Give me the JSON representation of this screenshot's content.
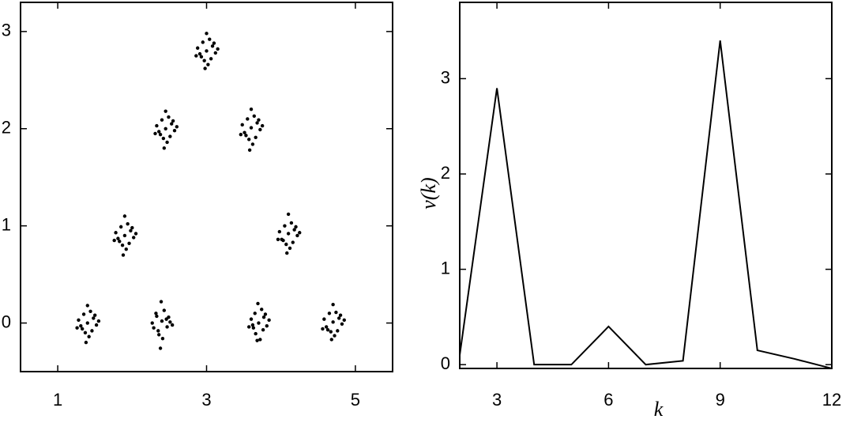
{
  "chart_data": [
    {
      "type": "scatter",
      "color": "#000000",
      "x": [
        1.4,
        1.48,
        1.33,
        1.52,
        1.28,
        1.44,
        1.37,
        1.5,
        1.31,
        1.42,
        1.35,
        1.46,
        1.26,
        1.55,
        1.4,
        1.38,
        2.4,
        2.47,
        2.33,
        2.51,
        2.29,
        2.43,
        2.36,
        2.49,
        2.32,
        2.41,
        2.35,
        2.46,
        2.27,
        2.54,
        2.39,
        2.38,
        3.7,
        3.77,
        3.63,
        3.81,
        3.6,
        3.74,
        3.66,
        3.79,
        3.62,
        3.72,
        3.65,
        3.76,
        3.57,
        3.84,
        3.69,
        3.68,
        4.7,
        4.78,
        4.63,
        4.82,
        4.58,
        4.74,
        4.67,
        4.8,
        4.61,
        4.72,
        4.65,
        4.76,
        4.56,
        4.85,
        4.7,
        4.68,
        1.9,
        1.98,
        1.83,
        2.02,
        1.78,
        1.94,
        1.87,
        2.0,
        1.81,
        1.92,
        1.85,
        1.96,
        1.76,
        2.05,
        1.9,
        1.88,
        4.1,
        4.18,
        4.03,
        4.22,
        3.98,
        4.14,
        4.07,
        4.2,
        4.01,
        4.12,
        4.05,
        4.16,
        3.96,
        4.25,
        4.1,
        4.08,
        2.45,
        2.53,
        2.38,
        2.57,
        2.33,
        2.49,
        2.42,
        2.55,
        2.36,
        2.47,
        2.4,
        2.51,
        2.31,
        2.6,
        2.45,
        2.43,
        3.6,
        3.68,
        3.53,
        3.72,
        3.48,
        3.64,
        3.57,
        3.7,
        3.51,
        3.62,
        3.55,
        3.66,
        3.46,
        3.75,
        3.6,
        3.58,
        3.0,
        3.08,
        2.93,
        3.12,
        2.88,
        3.04,
        2.97,
        3.1,
        2.91,
        3.02,
        2.95,
        3.06,
        2.86,
        3.15,
        3.0,
        2.98
      ],
      "y": [
        0,
        0.05,
        -0.06,
        -0.02,
        0.03,
        0.12,
        -0.1,
        0.08,
        -0.03,
        -0.14,
        0.09,
        -0.08,
        -0.05,
        0.02,
        0.18,
        -0.2,
        0.02,
        -0.04,
        0.07,
        0.01,
        -0.05,
        0.13,
        -0.12,
        0.06,
        0.1,
        -0.16,
        -0.08,
        0.04,
        0.0,
        -0.02,
        0.22,
        -0.26,
        0,
        0.06,
        -0.05,
        -0.03,
        0.04,
        0.14,
        -0.11,
        0.09,
        -0.02,
        -0.17,
        0.1,
        -0.07,
        -0.04,
        0.03,
        0.2,
        -0.18,
        0.01,
        0.05,
        -0.07,
        -0.01,
        0.04,
        0.11,
        -0.09,
        0.08,
        -0.04,
        -0.13,
        0.1,
        -0.08,
        -0.06,
        0.03,
        0.19,
        -0.17,
        0.9,
        0.95,
        0.84,
        0.88,
        0.93,
        1.02,
        0.8,
        0.98,
        0.87,
        0.76,
        0.99,
        0.82,
        0.85,
        0.92,
        1.1,
        0.7,
        0.92,
        0.96,
        0.85,
        0.9,
        0.94,
        1.03,
        0.81,
        0.99,
        0.86,
        0.77,
        1.0,
        0.83,
        0.86,
        0.93,
        1.12,
        0.72,
        2,
        2.05,
        1.94,
        1.98,
        2.03,
        2.12,
        1.9,
        2.08,
        1.97,
        1.86,
        2.09,
        1.92,
        1.95,
        2.02,
        2.18,
        1.8,
        2.01,
        2.06,
        1.93,
        1.99,
        2.04,
        2.13,
        1.89,
        2.09,
        1.96,
        1.84,
        2.1,
        1.91,
        1.94,
        2.03,
        2.2,
        1.78,
        2.8,
        2.85,
        2.74,
        2.78,
        2.83,
        2.92,
        2.7,
        2.88,
        2.77,
        2.66,
        2.89,
        2.72,
        2.75,
        2.82,
        2.98,
        2.62
      ],
      "xlim": [
        0.5,
        5.5
      ],
      "ylim": [
        -0.5,
        3.3
      ],
      "xticks": [
        1,
        3,
        5
      ],
      "yticks": [
        0,
        1,
        2,
        3
      ]
    },
    {
      "type": "line",
      "color": "#000000",
      "x_label": "k",
      "y_label": "v(k)",
      "x": [
        2,
        3,
        4,
        5,
        6,
        7,
        8,
        9,
        10,
        11,
        12
      ],
      "values": [
        0.1,
        2.9,
        0.0,
        0.0,
        0.4,
        0.0,
        0.04,
        3.4,
        0.15,
        0.06,
        -0.04
      ],
      "xlim": [
        2,
        12
      ],
      "ylim": [
        -0.04,
        3.8
      ],
      "xticks": [
        3,
        6,
        9,
        12
      ],
      "yticks": [
        0,
        1,
        2,
        3
      ]
    }
  ]
}
